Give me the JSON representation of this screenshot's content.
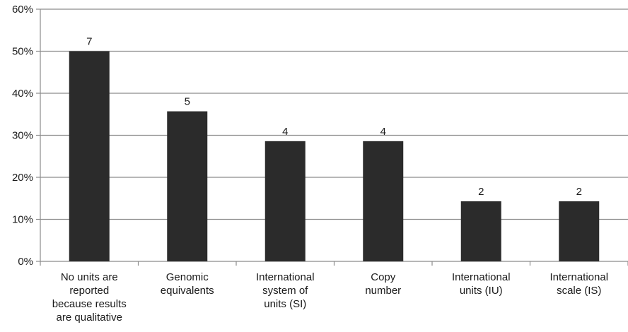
{
  "chart_data": {
    "type": "bar",
    "categories": [
      [
        "No units are",
        "reported",
        "because results",
        "are qualitative"
      ],
      [
        "Genomic",
        "equivalents"
      ],
      [
        "International",
        "system of",
        "units (SI)"
      ],
      [
        "Copy",
        "number"
      ],
      [
        "International",
        "units (IU)"
      ],
      [
        "International",
        "scale (IS)"
      ]
    ],
    "values": [
      50,
      35.7,
      28.6,
      28.6,
      14.3,
      14.3
    ],
    "data_labels": [
      "7",
      "5",
      "4",
      "4",
      "2",
      "2"
    ],
    "y_ticks": [
      "0%",
      "10%",
      "20%",
      "30%",
      "40%",
      "50%",
      "60%"
    ],
    "ylim": [
      0,
      60
    ],
    "title": "",
    "xlabel": "",
    "ylabel": "",
    "grid": true,
    "legend": "none",
    "colors": {
      "bar": "#2b2b2b",
      "grid": "#8c8c8c",
      "axis": "#8c8c8c"
    }
  }
}
